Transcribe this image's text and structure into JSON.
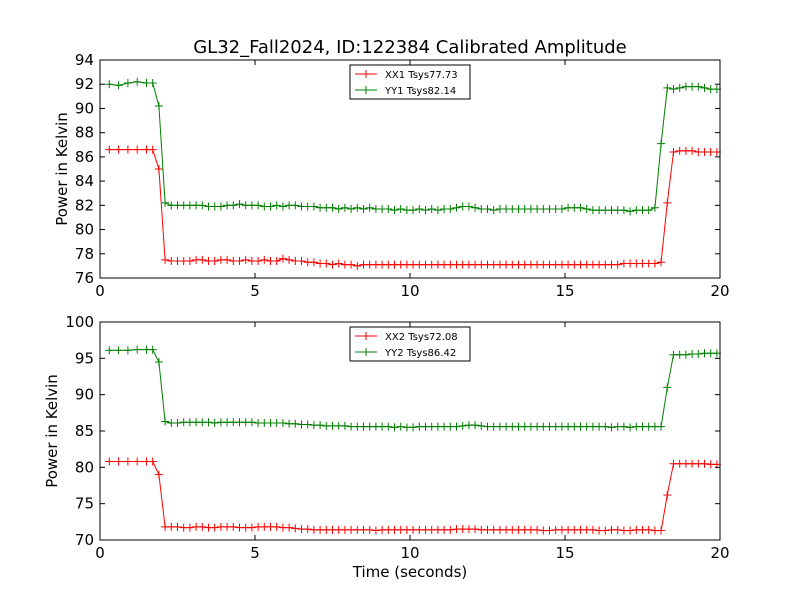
{
  "title": "GL32_Fall2024, ID:122384 Calibrated Amplitude",
  "chart_data": [
    {
      "type": "line",
      "ylabel": "Power in Kelvin",
      "xlabel": "",
      "xlim": [
        0,
        20
      ],
      "ylim": [
        76,
        94
      ],
      "x_ticks": [
        0,
        5,
        10,
        15,
        20
      ],
      "y_ticks": [
        76,
        78,
        80,
        82,
        84,
        86,
        88,
        90,
        92,
        94
      ],
      "grid": false,
      "legend_position": "top-center",
      "x": [
        0.3,
        0.6,
        0.9,
        1.2,
        1.5,
        1.7,
        1.9,
        2.1,
        2.3,
        2.5,
        2.7,
        2.9,
        3.1,
        3.3,
        3.5,
        3.7,
        3.9,
        4.1,
        4.3,
        4.5,
        4.7,
        4.9,
        5.1,
        5.3,
        5.5,
        5.7,
        5.9,
        6.1,
        6.3,
        6.5,
        6.7,
        6.9,
        7.1,
        7.3,
        7.5,
        7.7,
        7.9,
        8.1,
        8.3,
        8.5,
        8.7,
        8.9,
        9.1,
        9.3,
        9.5,
        9.7,
        9.9,
        10.1,
        10.3,
        10.5,
        10.7,
        10.9,
        11.1,
        11.3,
        11.5,
        11.7,
        11.9,
        12.1,
        12.3,
        12.5,
        12.7,
        12.9,
        13.1,
        13.3,
        13.5,
        13.7,
        13.9,
        14.1,
        14.3,
        14.5,
        14.7,
        14.9,
        15.1,
        15.3,
        15.5,
        15.7,
        15.9,
        16.1,
        16.3,
        16.5,
        16.7,
        16.9,
        17.1,
        17.3,
        17.5,
        17.7,
        17.9,
        18.1,
        18.3,
        18.5,
        18.7,
        18.9,
        19.1,
        19.3,
        19.5,
        19.7,
        19.9
      ],
      "series": [
        {
          "name": "XX1 Tsys77.73",
          "color": "#ff0000",
          "values": [
            86.6,
            86.6,
            86.6,
            86.6,
            86.6,
            86.6,
            85.0,
            77.5,
            77.4,
            77.4,
            77.4,
            77.4,
            77.5,
            77.5,
            77.4,
            77.4,
            77.5,
            77.5,
            77.4,
            77.4,
            77.5,
            77.4,
            77.4,
            77.5,
            77.4,
            77.4,
            77.6,
            77.5,
            77.4,
            77.4,
            77.3,
            77.3,
            77.2,
            77.2,
            77.1,
            77.2,
            77.1,
            77.1,
            77.0,
            77.1,
            77.1,
            77.1,
            77.1,
            77.1,
            77.1,
            77.1,
            77.1,
            77.1,
            77.1,
            77.1,
            77.1,
            77.1,
            77.1,
            77.1,
            77.1,
            77.1,
            77.1,
            77.1,
            77.1,
            77.1,
            77.1,
            77.1,
            77.1,
            77.1,
            77.1,
            77.1,
            77.1,
            77.1,
            77.1,
            77.1,
            77.1,
            77.1,
            77.1,
            77.1,
            77.1,
            77.1,
            77.1,
            77.1,
            77.1,
            77.1,
            77.1,
            77.2,
            77.2,
            77.2,
            77.2,
            77.2,
            77.2,
            77.3,
            82.2,
            86.4,
            86.5,
            86.5,
            86.5,
            86.4,
            86.4,
            86.4,
            86.4
          ]
        },
        {
          "name": "YY1 Tsys82.14",
          "color": "#008000",
          "values": [
            92.0,
            91.9,
            92.1,
            92.2,
            92.1,
            92.1,
            90.2,
            82.2,
            82.0,
            82.0,
            82.0,
            82.0,
            82.0,
            82.0,
            81.9,
            81.9,
            81.9,
            82.0,
            82.0,
            82.1,
            82.0,
            82.0,
            82.0,
            81.9,
            81.9,
            82.0,
            81.9,
            82.0,
            82.0,
            81.9,
            81.9,
            81.9,
            81.8,
            81.8,
            81.8,
            81.7,
            81.8,
            81.7,
            81.8,
            81.7,
            81.8,
            81.7,
            81.7,
            81.7,
            81.6,
            81.7,
            81.6,
            81.6,
            81.7,
            81.6,
            81.7,
            81.6,
            81.7,
            81.7,
            81.8,
            81.9,
            81.9,
            81.8,
            81.7,
            81.7,
            81.6,
            81.7,
            81.7,
            81.7,
            81.7,
            81.7,
            81.7,
            81.7,
            81.7,
            81.7,
            81.7,
            81.7,
            81.8,
            81.8,
            81.8,
            81.7,
            81.6,
            81.6,
            81.6,
            81.6,
            81.6,
            81.6,
            81.5,
            81.6,
            81.6,
            81.6,
            81.8,
            87.1,
            91.7,
            91.6,
            91.7,
            91.8,
            91.8,
            91.8,
            91.7,
            91.6,
            91.6
          ]
        }
      ]
    },
    {
      "type": "line",
      "ylabel": "Power in Kelvin",
      "xlabel": "Time (seconds)",
      "xlim": [
        0,
        20
      ],
      "ylim": [
        70,
        100
      ],
      "x_ticks": [
        0,
        5,
        10,
        15,
        20
      ],
      "y_ticks": [
        70,
        75,
        80,
        85,
        90,
        95,
        100
      ],
      "grid": false,
      "legend_position": "top-center",
      "x": [
        0.3,
        0.6,
        0.9,
        1.2,
        1.5,
        1.7,
        1.9,
        2.1,
        2.3,
        2.5,
        2.7,
        2.9,
        3.1,
        3.3,
        3.5,
        3.7,
        3.9,
        4.1,
        4.3,
        4.5,
        4.7,
        4.9,
        5.1,
        5.3,
        5.5,
        5.7,
        5.9,
        6.1,
        6.3,
        6.5,
        6.7,
        6.9,
        7.1,
        7.3,
        7.5,
        7.7,
        7.9,
        8.1,
        8.3,
        8.5,
        8.7,
        8.9,
        9.1,
        9.3,
        9.5,
        9.7,
        9.9,
        10.1,
        10.3,
        10.5,
        10.7,
        10.9,
        11.1,
        11.3,
        11.5,
        11.7,
        11.9,
        12.1,
        12.3,
        12.5,
        12.7,
        12.9,
        13.1,
        13.3,
        13.5,
        13.7,
        13.9,
        14.1,
        14.3,
        14.5,
        14.7,
        14.9,
        15.1,
        15.3,
        15.5,
        15.7,
        15.9,
        16.1,
        16.3,
        16.5,
        16.7,
        16.9,
        17.1,
        17.3,
        17.5,
        17.7,
        17.9,
        18.1,
        18.3,
        18.5,
        18.7,
        18.9,
        19.1,
        19.3,
        19.5,
        19.7,
        19.9
      ],
      "series": [
        {
          "name": "XX2 Tsys72.08",
          "color": "#ff0000",
          "values": [
            80.8,
            80.8,
            80.8,
            80.8,
            80.8,
            80.8,
            79.0,
            71.8,
            71.8,
            71.8,
            71.7,
            71.7,
            71.8,
            71.8,
            71.7,
            71.7,
            71.8,
            71.8,
            71.8,
            71.7,
            71.7,
            71.7,
            71.8,
            71.8,
            71.8,
            71.8,
            71.7,
            71.7,
            71.6,
            71.5,
            71.5,
            71.4,
            71.4,
            71.4,
            71.4,
            71.4,
            71.4,
            71.4,
            71.4,
            71.4,
            71.4,
            71.3,
            71.4,
            71.4,
            71.4,
            71.4,
            71.4,
            71.4,
            71.4,
            71.4,
            71.4,
            71.4,
            71.4,
            71.4,
            71.5,
            71.5,
            71.5,
            71.5,
            71.4,
            71.4,
            71.4,
            71.4,
            71.4,
            71.4,
            71.4,
            71.4,
            71.4,
            71.4,
            71.3,
            71.3,
            71.4,
            71.4,
            71.4,
            71.4,
            71.4,
            71.4,
            71.4,
            71.3,
            71.3,
            71.4,
            71.4,
            71.3,
            71.3,
            71.4,
            71.4,
            71.4,
            71.3,
            71.3,
            76.2,
            80.5,
            80.5,
            80.5,
            80.5,
            80.5,
            80.5,
            80.4,
            80.4
          ]
        },
        {
          "name": "YY2 Tsys86.42",
          "color": "#008000",
          "values": [
            96.1,
            96.1,
            96.1,
            96.2,
            96.2,
            96.2,
            94.5,
            86.3,
            86.1,
            86.1,
            86.2,
            86.2,
            86.2,
            86.2,
            86.2,
            86.1,
            86.2,
            86.2,
            86.2,
            86.2,
            86.2,
            86.2,
            86.1,
            86.1,
            86.1,
            86.1,
            86.1,
            86.0,
            86.0,
            85.9,
            85.9,
            85.8,
            85.8,
            85.7,
            85.7,
            85.7,
            85.7,
            85.6,
            85.6,
            85.6,
            85.6,
            85.6,
            85.6,
            85.6,
            85.5,
            85.6,
            85.5,
            85.5,
            85.6,
            85.6,
            85.6,
            85.6,
            85.6,
            85.6,
            85.6,
            85.7,
            85.8,
            85.8,
            85.7,
            85.6,
            85.6,
            85.6,
            85.6,
            85.6,
            85.6,
            85.6,
            85.6,
            85.6,
            85.6,
            85.6,
            85.6,
            85.6,
            85.6,
            85.6,
            85.6,
            85.6,
            85.6,
            85.6,
            85.6,
            85.5,
            85.6,
            85.6,
            85.5,
            85.6,
            85.6,
            85.6,
            85.6,
            85.6,
            91.0,
            95.5,
            95.5,
            95.5,
            95.6,
            95.6,
            95.7,
            95.7,
            95.7
          ]
        }
      ]
    }
  ]
}
